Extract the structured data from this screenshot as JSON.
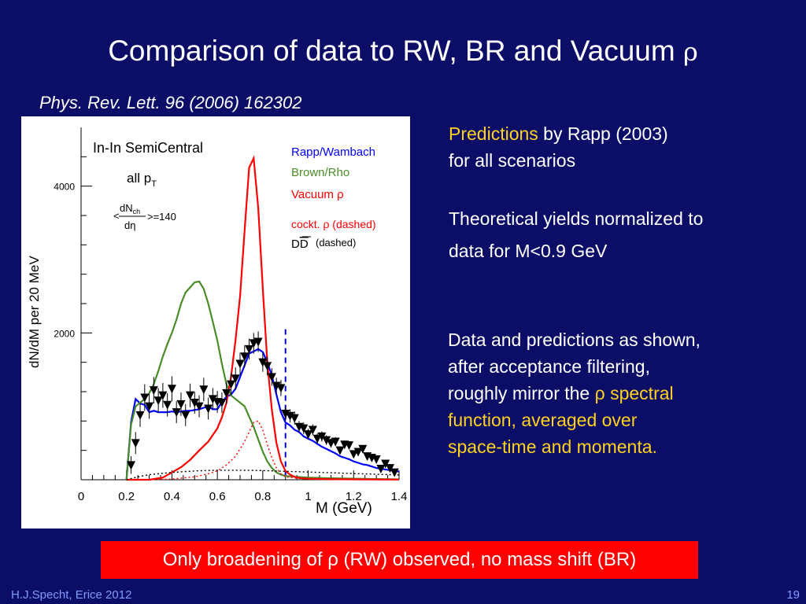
{
  "slide": {
    "title_text": "Comparison of data to RW, BR and Vacuum ",
    "title_rho": "ρ",
    "citation": "Phys. Rev. Lett. 96 (2006) 162302",
    "notes": {
      "predictions_word": "Predictions",
      "predictions_rest": " by Rapp (2003)",
      "scenarios": "for all scenarios",
      "norm_line1": "Theoretical yields normalized to",
      "norm_line2": "data for M<0.9 GeV",
      "accept_line1": "Data and predictions as shown,",
      "accept_line2": "after acceptance filtering,",
      "accept_line3a": "roughly mirror the ",
      "accept_line3b": "ρ spectral",
      "accept_line4": "function, averaged over",
      "accept_line5": "space-time and momenta."
    },
    "banner": "Only broadening of ρ (RW) observed, no mass shift (BR)",
    "footer_left": "H.J.Specht, Erice 2012",
    "page_number": "19",
    "colors": {
      "background": "#0b0d66",
      "accent_yellow": "#ffd21f",
      "banner_red": "#ff0000",
      "footer": "#7f9cff"
    }
  },
  "chart_data": {
    "type": "line",
    "xlabel": "M (GeV)",
    "ylabel": "dN/dM per 20 MeV",
    "xlim": [
      0,
      1.4
    ],
    "ylim": [
      0,
      4800
    ],
    "xticks": [
      0,
      0.2,
      0.4,
      0.6,
      0.8,
      1,
      1.2,
      1.4
    ],
    "xtick_labels": [
      "0",
      "0.2",
      "0.4",
      "0.6",
      "0.8",
      "1",
      "1.2",
      "1.4"
    ],
    "yticks": [
      2000,
      4000
    ],
    "ytick_labels": [
      "2000",
      "4000"
    ],
    "annotations": {
      "system": "In-In SemiCentral",
      "pt": "all p",
      "pt_sub": "T",
      "dnch_num": "dN",
      "dnch_sub": "ch",
      "dnch_den": "dη",
      "dnch_value": "=140"
    },
    "cut_line_x": 0.9,
    "series": [
      {
        "name": "Rapp/Wambach",
        "color": "#0000ff",
        "style": "solid",
        "x": [
          0.2,
          0.22,
          0.24,
          0.26,
          0.28,
          0.3,
          0.32,
          0.34,
          0.36,
          0.38,
          0.4,
          0.42,
          0.44,
          0.46,
          0.48,
          0.5,
          0.52,
          0.54,
          0.56,
          0.58,
          0.6,
          0.62,
          0.64,
          0.66,
          0.68,
          0.7,
          0.72,
          0.74,
          0.76,
          0.78,
          0.8,
          0.82,
          0.84,
          0.86,
          0.88,
          0.9,
          0.92,
          0.94,
          0.96,
          0.98,
          1.0,
          1.02,
          1.04,
          1.06,
          1.08,
          1.1,
          1.12,
          1.14,
          1.16,
          1.18,
          1.2,
          1.22,
          1.24,
          1.26,
          1.28,
          1.3,
          1.32,
          1.34,
          1.36,
          1.38,
          1.4
        ],
        "y": [
          0,
          780,
          1100,
          1040,
          1020,
          920,
          940,
          920,
          920,
          920,
          930,
          920,
          930,
          940,
          940,
          950,
          960,
          980,
          1000,
          960,
          960,
          1060,
          1130,
          1160,
          1240,
          1400,
          1560,
          1720,
          1750,
          1780,
          1740,
          1600,
          1420,
          1160,
          920,
          780,
          740,
          680,
          650,
          590,
          560,
          530,
          490,
          450,
          420,
          390,
          360,
          320,
          300,
          280,
          250,
          230,
          210,
          200,
          180,
          160,
          150,
          140,
          130,
          120,
          110
        ]
      },
      {
        "name": "Brown/Rho",
        "color": "#4a8c2a",
        "style": "solid",
        "x": [
          0.2,
          0.22,
          0.24,
          0.26,
          0.28,
          0.3,
          0.32,
          0.34,
          0.36,
          0.38,
          0.4,
          0.42,
          0.44,
          0.46,
          0.48,
          0.5,
          0.52,
          0.54,
          0.56,
          0.58,
          0.6,
          0.62,
          0.64,
          0.66,
          0.68,
          0.7,
          0.72,
          0.74,
          0.76,
          0.78,
          0.8,
          0.82,
          0.84,
          0.86,
          0.88,
          0.9,
          0.95,
          1.0,
          1.05,
          1.1,
          1.2,
          1.3,
          1.4
        ],
        "y": [
          0,
          750,
          1000,
          1050,
          1100,
          1180,
          1300,
          1480,
          1680,
          1850,
          2000,
          2180,
          2400,
          2550,
          2620,
          2690,
          2700,
          2600,
          2400,
          2150,
          1900,
          1580,
          1300,
          1150,
          1100,
          1050,
          1000,
          860,
          720,
          550,
          380,
          250,
          160,
          100,
          70,
          50,
          40,
          30,
          25,
          20,
          15,
          10,
          5
        ]
      },
      {
        "name": "Vacuum ρ",
        "color": "#ff0000",
        "style": "solid",
        "x": [
          0.2,
          0.3,
          0.36,
          0.4,
          0.44,
          0.48,
          0.52,
          0.56,
          0.6,
          0.62,
          0.64,
          0.66,
          0.68,
          0.7,
          0.72,
          0.74,
          0.76,
          0.78,
          0.8,
          0.82,
          0.84,
          0.86,
          0.88,
          0.9,
          0.92,
          0.94,
          0.96,
          0.98,
          1.0,
          1.1,
          1.2,
          1.3,
          1.4
        ],
        "y": [
          0,
          0,
          30,
          100,
          170,
          270,
          400,
          520,
          700,
          850,
          1050,
          1400,
          1900,
          2500,
          3400,
          4250,
          4380,
          3700,
          2600,
          1600,
          950,
          500,
          250,
          120,
          70,
          40,
          25,
          18,
          14,
          8,
          5,
          3,
          2
        ]
      },
      {
        "name": "cockt. ρ (dashed)",
        "color": "#ff0000",
        "style": "dotted",
        "x": [
          0.3,
          0.4,
          0.5,
          0.56,
          0.6,
          0.64,
          0.68,
          0.7,
          0.72,
          0.74,
          0.76,
          0.78,
          0.8,
          0.82,
          0.84,
          0.86,
          0.88,
          0.9,
          0.95,
          1.0,
          1.1
        ],
        "y": [
          0,
          10,
          40,
          80,
          120,
          200,
          320,
          420,
          520,
          650,
          780,
          800,
          680,
          480,
          300,
          160,
          80,
          40,
          20,
          10,
          0
        ]
      },
      {
        "name": "DD (dashed)",
        "color": "#000000",
        "style": "dotted",
        "x": [
          0.2,
          0.25,
          0.3,
          0.4,
          0.5,
          0.6,
          0.7,
          0.8,
          0.9,
          1.0,
          1.1,
          1.2,
          1.3,
          1.4
        ],
        "y": [
          0,
          40,
          70,
          100,
          120,
          130,
          130,
          125,
          115,
          105,
          95,
          85,
          75,
          65
        ]
      },
      {
        "name": "data",
        "color": "#000000",
        "style": "markers",
        "x": [
          0.22,
          0.24,
          0.26,
          0.28,
          0.3,
          0.32,
          0.34,
          0.36,
          0.38,
          0.4,
          0.42,
          0.44,
          0.46,
          0.48,
          0.5,
          0.52,
          0.54,
          0.56,
          0.58,
          0.6,
          0.62,
          0.64,
          0.66,
          0.68,
          0.7,
          0.72,
          0.74,
          0.76,
          0.78,
          0.8,
          0.82,
          0.84,
          0.86,
          0.88,
          0.9,
          0.92,
          0.94,
          0.96,
          0.98,
          1.0,
          1.02,
          1.04,
          1.06,
          1.08,
          1.1,
          1.12,
          1.14,
          1.16,
          1.18,
          1.2,
          1.22,
          1.24,
          1.26,
          1.28,
          1.3,
          1.32,
          1.34,
          1.36,
          1.38
        ],
        "y": [
          200,
          500,
          880,
          1120,
          1000,
          1220,
          1080,
          1150,
          1020,
          1240,
          920,
          1030,
          880,
          1150,
          1050,
          1000,
          1230,
          970,
          1100,
          1060,
          1050,
          1180,
          1300,
          1380,
          1580,
          1680,
          1780,
          1860,
          1880,
          1600,
          1550,
          1400,
          1280,
          1250,
          900,
          870,
          840,
          720,
          700,
          620,
          680,
          560,
          590,
          540,
          500,
          520,
          400,
          480,
          470,
          350,
          380,
          420,
          320,
          300,
          280,
          150,
          220,
          160,
          100
        ],
        "err": [
          120,
          150,
          160,
          180,
          170,
          180,
          170,
          170,
          160,
          170,
          150,
          160,
          150,
          160,
          150,
          150,
          160,
          150,
          150,
          150,
          140,
          150,
          150,
          150,
          150,
          150,
          140,
          140,
          140,
          130,
          130,
          120,
          110,
          110,
          100,
          90,
          90,
          80,
          80,
          75,
          75,
          70,
          70,
          65,
          60,
          60,
          55,
          55,
          55,
          50,
          50,
          50,
          45,
          45,
          45,
          40,
          40,
          40,
          35
        ]
      }
    ]
  }
}
